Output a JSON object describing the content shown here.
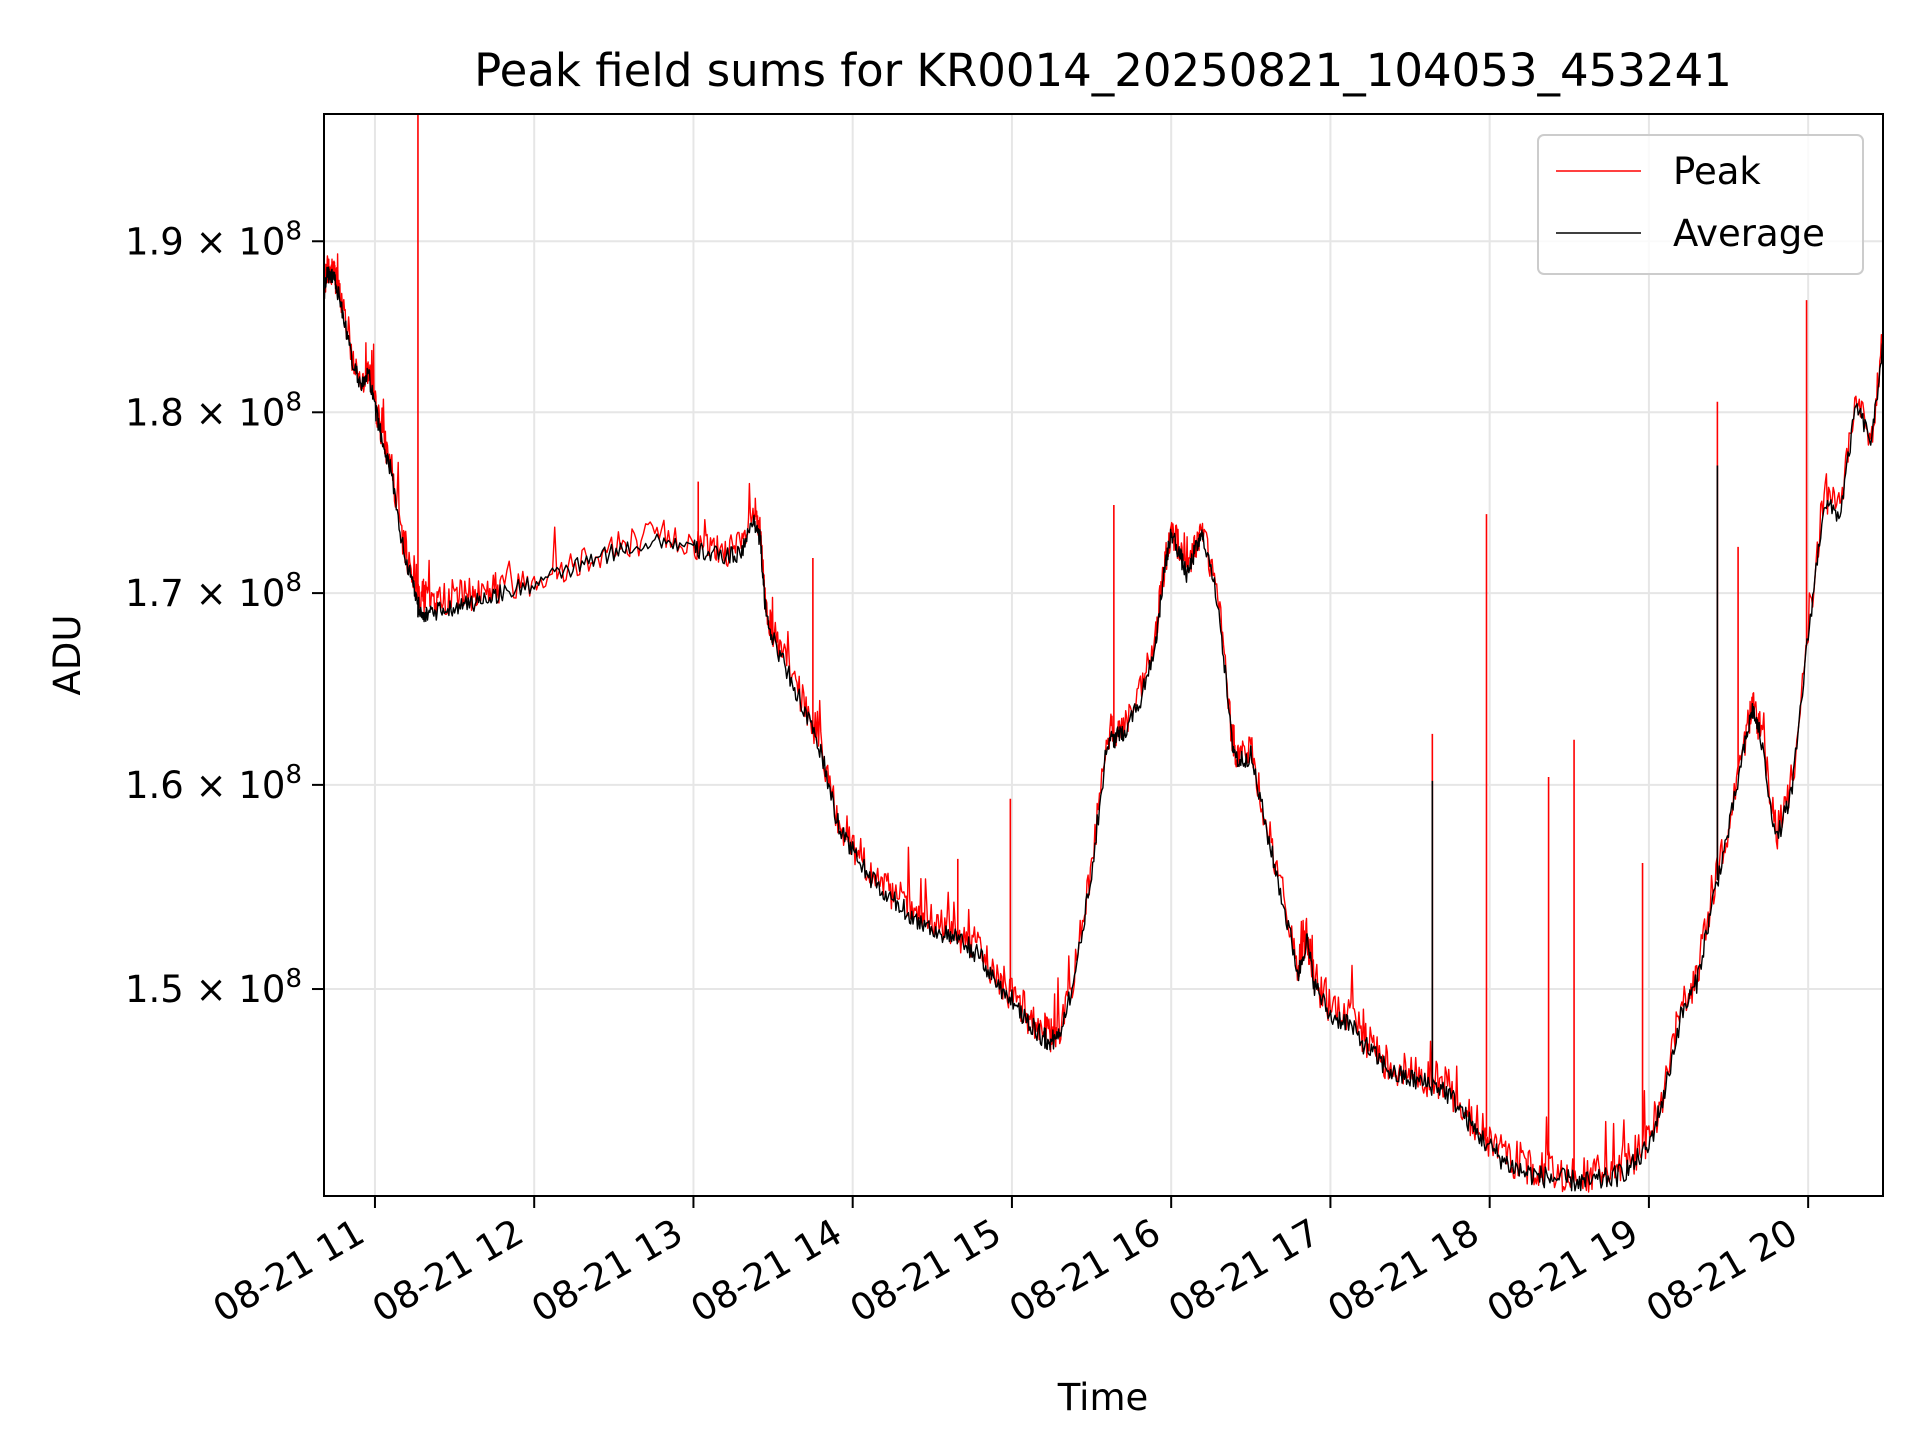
{
  "chart_data": {
    "type": "line",
    "title": "Peak field sums for KR0014_20250821_104053_453241",
    "xlabel": "Time",
    "ylabel": "ADU",
    "x_unit": "hour of 2025-08-21",
    "xlim": [
      10.68,
      20.47
    ],
    "ylim": [
      140500000,
      197800000
    ],
    "y_scale": "log",
    "grid": true,
    "legend": {
      "placement": "top-right"
    },
    "x_ticks": [
      {
        "value": 11,
        "label": "08-21 11"
      },
      {
        "value": 12,
        "label": "08-21 12"
      },
      {
        "value": 13,
        "label": "08-21 13"
      },
      {
        "value": 14,
        "label": "08-21 14"
      },
      {
        "value": 15,
        "label": "08-21 15"
      },
      {
        "value": 16,
        "label": "08-21 16"
      },
      {
        "value": 17,
        "label": "08-21 17"
      },
      {
        "value": 18,
        "label": "08-21 18"
      },
      {
        "value": 19,
        "label": "08-21 19"
      },
      {
        "value": 20,
        "label": "08-21 20"
      }
    ],
    "y_ticks": [
      {
        "value": 150000000,
        "mantissa": "1.5",
        "base": "10",
        "exp": "8"
      },
      {
        "value": 160000000,
        "mantissa": "1.6",
        "base": "10",
        "exp": "8"
      },
      {
        "value": 170000000,
        "mantissa": "1.7",
        "base": "10",
        "exp": "8"
      },
      {
        "value": 180000000,
        "mantissa": "1.8",
        "base": "10",
        "exp": "8"
      },
      {
        "value": 190000000,
        "mantissa": "1.9",
        "base": "10",
        "exp": "8"
      }
    ],
    "series": [
      {
        "name": "Peak",
        "color": "#ff0000",
        "x": [
          10.68,
          10.7,
          10.72,
          10.74,
          10.76,
          10.8,
          10.86,
          10.92,
          10.96,
          11.0,
          11.04,
          11.1,
          11.18,
          11.24,
          11.28,
          11.33,
          11.4,
          11.5,
          11.6,
          11.7,
          11.8,
          12.0,
          12.2,
          12.4,
          12.6,
          12.8,
          13.0,
          13.1,
          13.2,
          13.3,
          13.38,
          13.42,
          13.45,
          13.5,
          13.6,
          13.7,
          13.8,
          13.9,
          14.0,
          14.1,
          14.2,
          14.3,
          14.4,
          14.5,
          14.6,
          14.7,
          14.8,
          14.9,
          15.0,
          15.1,
          15.2,
          15.25,
          15.3,
          15.4,
          15.5,
          15.6,
          15.65,
          15.7,
          15.8,
          15.9,
          15.95,
          16.0,
          16.05,
          16.1,
          16.15,
          16.2,
          16.3,
          16.38,
          16.42,
          16.5,
          16.6,
          16.7,
          16.8,
          16.85,
          16.9,
          17.0,
          17.1,
          17.2,
          17.3,
          17.4,
          17.5,
          17.6,
          17.7,
          17.8,
          17.9,
          18.0,
          18.1,
          18.2,
          18.3,
          18.4,
          18.5,
          18.6,
          18.7,
          18.8,
          18.9,
          19.0,
          19.1,
          19.2,
          19.3,
          19.4,
          19.5,
          19.6,
          19.65,
          19.7,
          19.8,
          19.9,
          20.0,
          20.1,
          20.2,
          20.3,
          20.4,
          20.47
        ],
        "y": [
          187000000,
          188500000,
          188000000,
          188300000,
          187500000,
          186000000,
          183000000,
          181800000,
          182500000,
          180500000,
          179000000,
          177000000,
          172500000,
          171000000,
          170000000,
          169700000,
          169600000,
          169900000,
          169900000,
          170200000,
          170400000,
          170800000,
          171500000,
          172200000,
          172800000,
          173200000,
          172700000,
          172400000,
          172300000,
          172500000,
          174300000,
          173200000,
          169500000,
          167800000,
          166000000,
          164000000,
          162000000,
          158500000,
          157000000,
          155800000,
          154800000,
          154300000,
          153600000,
          153200000,
          152800000,
          152500000,
          151800000,
          150600000,
          149800000,
          148800000,
          148000000,
          147800000,
          148300000,
          151000000,
          156000000,
          162500000,
          162700000,
          163000000,
          164500000,
          167500000,
          171000000,
          173600000,
          172500000,
          171200000,
          172600000,
          173500000,
          169500000,
          162500000,
          161500000,
          161800000,
          158000000,
          154500000,
          151000000,
          152700000,
          150500000,
          149000000,
          148800000,
          147800000,
          147000000,
          146300000,
          146100000,
          145900000,
          145700000,
          144900000,
          143800000,
          143000000,
          142300000,
          141900000,
          141700000,
          141600000,
          141500000,
          141400000,
          141500000,
          141700000,
          142200000,
          143000000,
          145500000,
          149000000,
          150600000,
          154500000,
          158000000,
          162200000,
          164200000,
          162800000,
          157500000,
          160000000,
          168000000,
          175200000,
          174500000,
          180700000,
          178600000,
          184400000
        ],
        "spikes": [
          {
            "x": 11.27,
            "y": 197800000
          },
          {
            "x": 13.03,
            "y": 176100000
          },
          {
            "x": 13.75,
            "y": 171900000
          },
          {
            "x": 14.66,
            "y": 156300000
          },
          {
            "x": 14.99,
            "y": 159300000
          },
          {
            "x": 15.64,
            "y": 174800000
          },
          {
            "x": 17.64,
            "y": 162600000
          },
          {
            "x": 17.98,
            "y": 174300000
          },
          {
            "x": 18.37,
            "y": 160400000
          },
          {
            "x": 18.53,
            "y": 162300000
          },
          {
            "x": 18.96,
            "y": 156100000
          },
          {
            "x": 19.43,
            "y": 180600000
          },
          {
            "x": 19.56,
            "y": 172500000
          },
          {
            "x": 19.99,
            "y": 186500000
          }
        ]
      },
      {
        "name": "Average",
        "color": "#000000",
        "x": [
          10.68,
          10.7,
          10.72,
          10.74,
          10.76,
          10.8,
          10.86,
          10.92,
          10.96,
          11.0,
          11.04,
          11.1,
          11.18,
          11.24,
          11.28,
          11.33,
          11.4,
          11.5,
          11.6,
          11.7,
          11.8,
          12.0,
          12.2,
          12.4,
          12.6,
          12.8,
          13.0,
          13.1,
          13.2,
          13.3,
          13.38,
          13.42,
          13.45,
          13.5,
          13.6,
          13.7,
          13.8,
          13.9,
          14.0,
          14.1,
          14.2,
          14.3,
          14.4,
          14.5,
          14.6,
          14.7,
          14.8,
          14.9,
          15.0,
          15.1,
          15.2,
          15.25,
          15.3,
          15.4,
          15.5,
          15.6,
          15.65,
          15.7,
          15.8,
          15.9,
          15.95,
          16.0,
          16.05,
          16.1,
          16.15,
          16.2,
          16.3,
          16.38,
          16.42,
          16.5,
          16.6,
          16.7,
          16.8,
          16.85,
          16.9,
          17.0,
          17.1,
          17.2,
          17.3,
          17.4,
          17.5,
          17.6,
          17.7,
          17.8,
          17.9,
          18.0,
          18.1,
          18.2,
          18.3,
          18.4,
          18.5,
          18.6,
          18.7,
          18.8,
          18.9,
          19.0,
          19.1,
          19.2,
          19.3,
          19.4,
          19.5,
          19.6,
          19.65,
          19.7,
          19.8,
          19.9,
          20.0,
          20.1,
          20.2,
          20.3,
          20.4,
          20.47
        ],
        "y": [
          186700000,
          188200000,
          187700000,
          188000000,
          187200000,
          185700000,
          182700000,
          181500000,
          182200000,
          180200000,
          178700000,
          176700000,
          172200000,
          170500000,
          169200000,
          168800000,
          169000000,
          169300000,
          169400000,
          169800000,
          170000000,
          170500000,
          171200000,
          171900000,
          172500000,
          172900000,
          172400000,
          172100000,
          172000000,
          172200000,
          174000000,
          172900000,
          169200000,
          167500000,
          165700000,
          163700000,
          161700000,
          158200000,
          156700000,
          155500000,
          154500000,
          154000000,
          153300000,
          152900000,
          152500000,
          152200000,
          151500000,
          150300000,
          149500000,
          148500000,
          147700000,
          147500000,
          148000000,
          150700000,
          155700000,
          162200000,
          162400000,
          162700000,
          164200000,
          167200000,
          170700000,
          173300000,
          172200000,
          170900000,
          172300000,
          173200000,
          169200000,
          162200000,
          161200000,
          161500000,
          157700000,
          154200000,
          150700000,
          152400000,
          150200000,
          148700000,
          148500000,
          147500000,
          146700000,
          146000000,
          145800000,
          145600000,
          145400000,
          144600000,
          143500000,
          142700000,
          142000000,
          141600000,
          141400000,
          141300000,
          141200000,
          141100000,
          141200000,
          141400000,
          141900000,
          142700000,
          145200000,
          148700000,
          150300000,
          154200000,
          157700000,
          161900000,
          163900000,
          162500000,
          157200000,
          159700000,
          167700000,
          174900000,
          174200000,
          180400000,
          178300000,
          184100000
        ],
        "spikes": [
          {
            "x": 11.27,
            "y": 168700000
          },
          {
            "x": 17.64,
            "y": 160200000
          },
          {
            "x": 19.43,
            "y": 177000000
          }
        ]
      }
    ]
  }
}
